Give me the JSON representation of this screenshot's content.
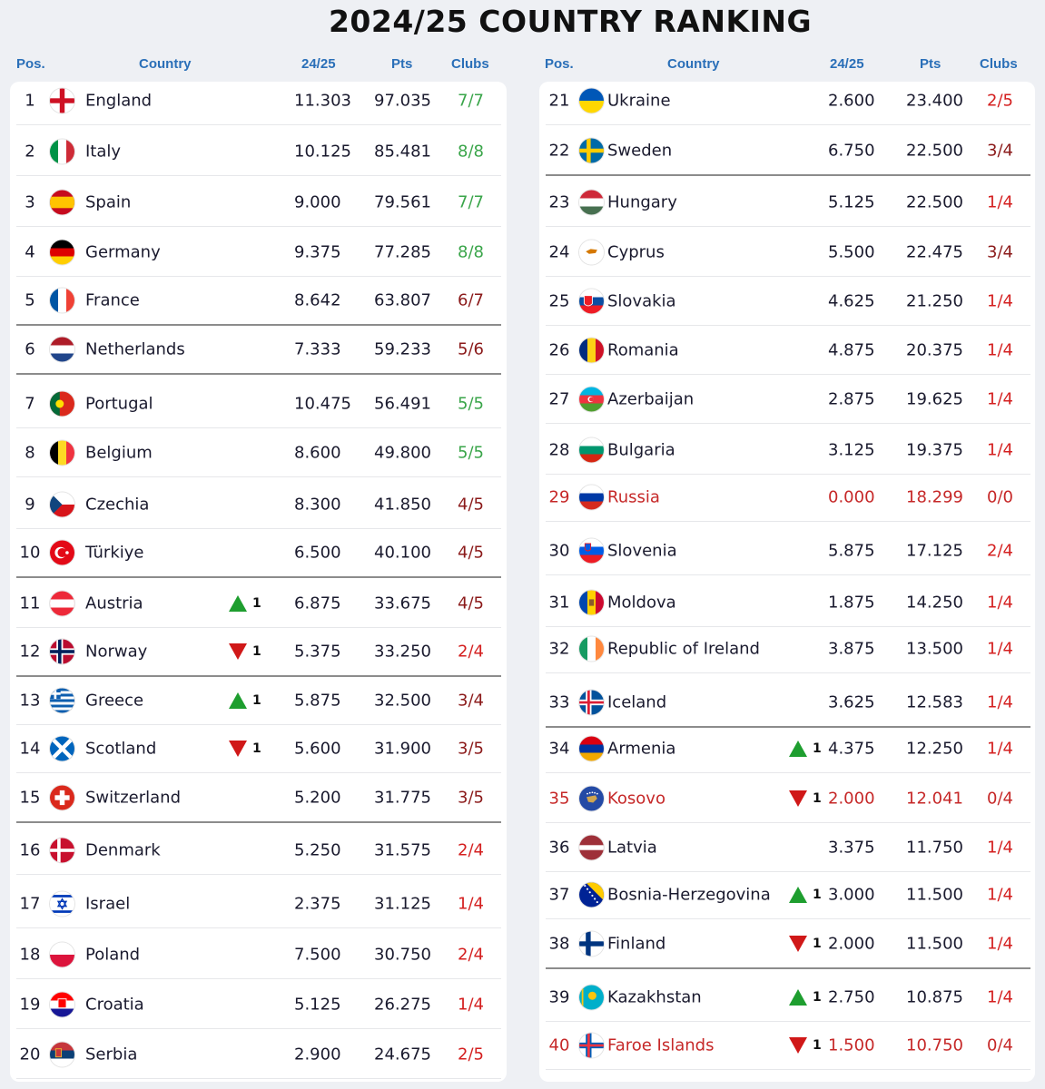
{
  "title": "2024/25 COUNTRY RANKING",
  "headers": {
    "pos": "Pos.",
    "country": "Country",
    "season": "24/25",
    "pts": "Pts",
    "clubs": "Clubs"
  },
  "colors": {
    "header_blue": "#2a6fb8",
    "clubs_full": "#3aa54a",
    "clubs_part": "#8b1a1a",
    "clubs_low": "#d42020",
    "excluded_red": "#c62828",
    "up_green": "#1e9e2f",
    "down_red": "#d01818"
  },
  "left": [
    {
      "pos": "1",
      "country": "England",
      "flag": "england",
      "season": "11.303",
      "pts": "97.035",
      "clubs": "7/7",
      "cls": "full",
      "move": "",
      "sep": false
    },
    {
      "pos": "2",
      "country": "Italy",
      "flag": "italy",
      "season": "10.125",
      "pts": "85.481",
      "clubs": "8/8",
      "cls": "full",
      "move": "",
      "sep": false
    },
    {
      "pos": "3",
      "country": "Spain",
      "flag": "spain",
      "season": "9.000",
      "pts": "79.561",
      "clubs": "7/7",
      "cls": "full",
      "move": "",
      "sep": false
    },
    {
      "pos": "4",
      "country": "Germany",
      "flag": "germany",
      "season": "9.375",
      "pts": "77.285",
      "clubs": "8/8",
      "cls": "full",
      "move": "",
      "sep": false
    },
    {
      "pos": "5",
      "country": "France",
      "flag": "france",
      "season": "8.642",
      "pts": "63.807",
      "clubs": "6/7",
      "cls": "part",
      "move": "",
      "sep": true
    },
    {
      "pos": "6",
      "country": "Netherlands",
      "flag": "netherlands",
      "season": "7.333",
      "pts": "59.233",
      "clubs": "5/6",
      "cls": "part",
      "move": "",
      "sep": true
    },
    {
      "pos": "7",
      "country": "Portugal",
      "flag": "portugal",
      "season": "10.475",
      "pts": "56.491",
      "clubs": "5/5",
      "cls": "full",
      "move": "",
      "sep": false
    },
    {
      "pos": "8",
      "country": "Belgium",
      "flag": "belgium",
      "season": "8.600",
      "pts": "49.800",
      "clubs": "5/5",
      "cls": "full",
      "move": "",
      "sep": false
    },
    {
      "pos": "9",
      "country": "Czechia",
      "flag": "czechia",
      "season": "8.300",
      "pts": "41.850",
      "clubs": "4/5",
      "cls": "part",
      "move": "",
      "sep": false
    },
    {
      "pos": "10",
      "country": "Türkiye",
      "flag": "turkiye",
      "season": "6.500",
      "pts": "40.100",
      "clubs": "4/5",
      "cls": "part",
      "move": "",
      "sep": true
    },
    {
      "pos": "11",
      "country": "Austria",
      "flag": "austria",
      "season": "6.875",
      "pts": "33.675",
      "clubs": "4/5",
      "cls": "part",
      "move": "up",
      "move_val": "1",
      "sep": false
    },
    {
      "pos": "12",
      "country": "Norway",
      "flag": "norway",
      "season": "5.375",
      "pts": "33.250",
      "clubs": "2/4",
      "cls": "low",
      "move": "down",
      "move_val": "1",
      "sep": true
    },
    {
      "pos": "13",
      "country": "Greece",
      "flag": "greece",
      "season": "5.875",
      "pts": "32.500",
      "clubs": "3/4",
      "cls": "part",
      "move": "up",
      "move_val": "1",
      "sep": false
    },
    {
      "pos": "14",
      "country": "Scotland",
      "flag": "scotland",
      "season": "5.600",
      "pts": "31.900",
      "clubs": "3/5",
      "cls": "part",
      "move": "down",
      "move_val": "1",
      "sep": false
    },
    {
      "pos": "15",
      "country": "Switzerland",
      "flag": "switzerland",
      "season": "5.200",
      "pts": "31.775",
      "clubs": "3/5",
      "cls": "part",
      "move": "",
      "sep": true
    },
    {
      "pos": "16",
      "country": "Denmark",
      "flag": "denmark",
      "season": "5.250",
      "pts": "31.575",
      "clubs": "2/4",
      "cls": "low",
      "move": "",
      "sep": false
    },
    {
      "pos": "17",
      "country": "Israel",
      "flag": "israel",
      "season": "2.375",
      "pts": "31.125",
      "clubs": "1/4",
      "cls": "low",
      "move": "",
      "sep": false
    },
    {
      "pos": "18",
      "country": "Poland",
      "flag": "poland",
      "season": "7.500",
      "pts": "30.750",
      "clubs": "2/4",
      "cls": "low",
      "move": "",
      "sep": false
    },
    {
      "pos": "19",
      "country": "Croatia",
      "flag": "croatia",
      "season": "5.125",
      "pts": "26.275",
      "clubs": "1/4",
      "cls": "low",
      "move": "",
      "sep": false
    },
    {
      "pos": "20",
      "country": "Serbia",
      "flag": "serbia",
      "season": "2.900",
      "pts": "24.675",
      "clubs": "2/5",
      "cls": "low",
      "move": "",
      "sep": false
    }
  ],
  "right": [
    {
      "pos": "21",
      "country": "Ukraine",
      "flag": "ukraine",
      "season": "2.600",
      "pts": "23.400",
      "clubs": "2/5",
      "cls": "low",
      "move": "",
      "sep": false
    },
    {
      "pos": "22",
      "country": "Sweden",
      "flag": "sweden",
      "season": "6.750",
      "pts": "22.500",
      "clubs": "3/4",
      "cls": "part",
      "move": "",
      "sep": true
    },
    {
      "pos": "23",
      "country": "Hungary",
      "flag": "hungary",
      "season": "5.125",
      "pts": "22.500",
      "clubs": "1/4",
      "cls": "low",
      "move": "",
      "sep": false
    },
    {
      "pos": "24",
      "country": "Cyprus",
      "flag": "cyprus",
      "season": "5.500",
      "pts": "22.475",
      "clubs": "3/4",
      "cls": "part",
      "move": "",
      "sep": false
    },
    {
      "pos": "25",
      "country": "Slovakia",
      "flag": "slovakia",
      "season": "4.625",
      "pts": "21.250",
      "clubs": "1/4",
      "cls": "low",
      "move": "",
      "sep": false
    },
    {
      "pos": "26",
      "country": "Romania",
      "flag": "romania",
      "season": "4.875",
      "pts": "20.375",
      "clubs": "1/4",
      "cls": "low",
      "move": "",
      "sep": false
    },
    {
      "pos": "27",
      "country": "Azerbaijan",
      "flag": "azerbaijan",
      "season": "2.875",
      "pts": "19.625",
      "clubs": "1/4",
      "cls": "low",
      "move": "",
      "sep": false
    },
    {
      "pos": "28",
      "country": "Bulgaria",
      "flag": "bulgaria",
      "season": "3.125",
      "pts": "19.375",
      "clubs": "1/4",
      "cls": "low",
      "move": "",
      "sep": false
    },
    {
      "pos": "29",
      "country": "Russia",
      "flag": "russia",
      "season": "0.000",
      "pts": "18.299",
      "clubs": "0/0",
      "cls": "low",
      "move": "",
      "sep": false,
      "red": true
    },
    {
      "pos": "30",
      "country": "Slovenia",
      "flag": "slovenia",
      "season": "5.875",
      "pts": "17.125",
      "clubs": "2/4",
      "cls": "low",
      "move": "",
      "sep": false
    },
    {
      "pos": "31",
      "country": "Moldova",
      "flag": "moldova",
      "season": "1.875",
      "pts": "14.250",
      "clubs": "1/4",
      "cls": "low",
      "move": "",
      "sep": false
    },
    {
      "pos": "32",
      "country": "Republic of Ireland",
      "flag": "ireland",
      "season": "3.875",
      "pts": "13.500",
      "clubs": "1/4",
      "cls": "low",
      "move": "",
      "sep": false
    },
    {
      "pos": "33",
      "country": "Iceland",
      "flag": "iceland",
      "season": "3.625",
      "pts": "12.583",
      "clubs": "1/4",
      "cls": "low",
      "move": "",
      "sep": true
    },
    {
      "pos": "34",
      "country": "Armenia",
      "flag": "armenia",
      "season": "4.375",
      "pts": "12.250",
      "clubs": "1/4",
      "cls": "low",
      "move": "up",
      "move_val": "1",
      "sep": false
    },
    {
      "pos": "35",
      "country": "Kosovo",
      "flag": "kosovo",
      "season": "2.000",
      "pts": "12.041",
      "clubs": "0/4",
      "cls": "low",
      "move": "down",
      "move_val": "1",
      "sep": false,
      "red": true
    },
    {
      "pos": "36",
      "country": "Latvia",
      "flag": "latvia",
      "season": "3.375",
      "pts": "11.750",
      "clubs": "1/4",
      "cls": "low",
      "move": "",
      "sep": false
    },
    {
      "pos": "37",
      "country": "Bosnia-Herzegovina",
      "flag": "bosnia",
      "season": "3.000",
      "pts": "11.500",
      "clubs": "1/4",
      "cls": "low",
      "move": "up",
      "move_val": "1",
      "sep": false
    },
    {
      "pos": "38",
      "country": "Finland",
      "flag": "finland",
      "season": "2.000",
      "pts": "11.500",
      "clubs": "1/4",
      "cls": "low",
      "move": "down",
      "move_val": "1",
      "sep": true
    },
    {
      "pos": "39",
      "country": "Kazakhstan",
      "flag": "kazakhstan",
      "season": "2.750",
      "pts": "10.875",
      "clubs": "1/4",
      "cls": "low",
      "move": "up",
      "move_val": "1",
      "sep": false
    },
    {
      "pos": "40",
      "country": "Faroe Islands",
      "flag": "faroe",
      "season": "1.500",
      "pts": "10.750",
      "clubs": "0/4",
      "cls": "low",
      "move": "down",
      "move_val": "1",
      "sep": false,
      "red": true
    }
  ]
}
